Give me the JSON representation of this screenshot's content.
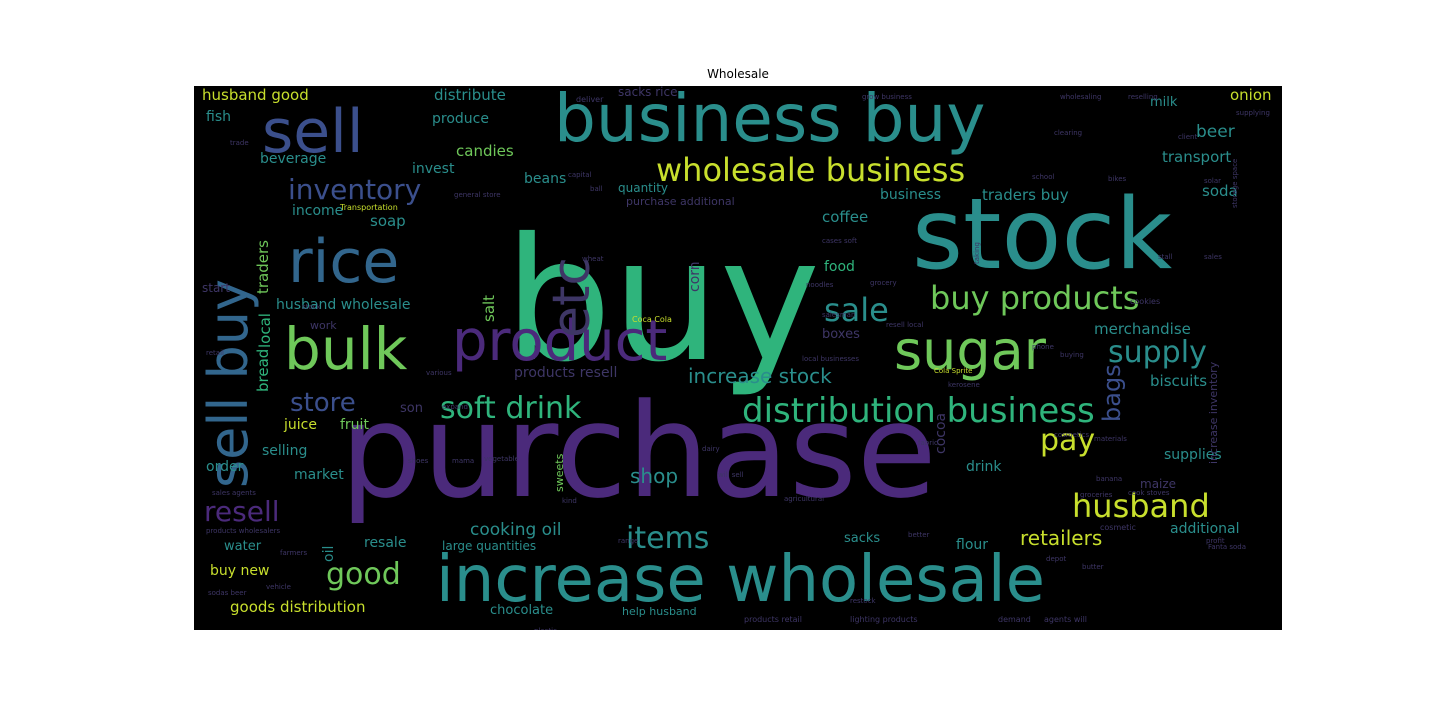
{
  "figure": {
    "title": "Wholesale"
  },
  "colors": {
    "purple": "#4b2a7b",
    "indigo": "#3b4f8c",
    "blue": "#32668d",
    "teal": "#2a8e8c",
    "green": "#2fb47c",
    "lime": "#6fc85a",
    "yellow": "#c8df2d",
    "dim": "#3e3666"
  },
  "words": [
    {
      "id": "buy",
      "text": "buy"
    },
    {
      "id": "purchase",
      "text": "purchase"
    },
    {
      "id": "stock",
      "text": "stock"
    },
    {
      "id": "business-buy",
      "text": "business buy"
    },
    {
      "id": "increase-wholesale",
      "text": "increase wholesale"
    },
    {
      "id": "product",
      "text": "product"
    },
    {
      "id": "sell",
      "text": "sell"
    },
    {
      "id": "rice",
      "text": "rice"
    },
    {
      "id": "bulk",
      "text": "bulk"
    },
    {
      "id": "sugar",
      "text": "sugar"
    },
    {
      "id": "sell-buy",
      "text": "sell buy"
    },
    {
      "id": "etc",
      "text": "etc"
    },
    {
      "id": "wholesale-business",
      "text": "wholesale business"
    },
    {
      "id": "distribution-business",
      "text": "distribution business"
    },
    {
      "id": "buy-products",
      "text": "buy products"
    },
    {
      "id": "soft-drink",
      "text": "soft drink"
    },
    {
      "id": "husband",
      "text": "husband"
    },
    {
      "id": "inventory",
      "text": "inventory"
    },
    {
      "id": "sale",
      "text": "sale"
    },
    {
      "id": "supply",
      "text": "supply"
    },
    {
      "id": "items",
      "text": "items"
    },
    {
      "id": "good",
      "text": "good"
    },
    {
      "id": "pay",
      "text": "pay"
    },
    {
      "id": "resell",
      "text": "resell"
    },
    {
      "id": "store",
      "text": "store"
    },
    {
      "id": "increase-stock",
      "text": "increase stock"
    },
    {
      "id": "bags",
      "text": "bags"
    },
    {
      "id": "shop",
      "text": "shop"
    },
    {
      "id": "retailers",
      "text": "retailers"
    },
    {
      "id": "cooking-oil",
      "text": "cooking oil"
    },
    {
      "id": "husband-good",
      "text": "husband good"
    },
    {
      "id": "distribute",
      "text": "distribute"
    },
    {
      "id": "sacks-rice",
      "text": "sacks rice"
    },
    {
      "id": "onion",
      "text": "onion"
    },
    {
      "id": "milk",
      "text": "milk"
    },
    {
      "id": "fish",
      "text": "fish"
    },
    {
      "id": "produce",
      "text": "produce"
    },
    {
      "id": "beer",
      "text": "beer"
    },
    {
      "id": "transport",
      "text": "transport"
    },
    {
      "id": "candies",
      "text": "candies"
    },
    {
      "id": "beverage",
      "text": "beverage"
    },
    {
      "id": "invest",
      "text": "invest"
    },
    {
      "id": "beans",
      "text": "beans"
    },
    {
      "id": "quantity",
      "text": "quantity"
    },
    {
      "id": "purchase-additional",
      "text": "purchase additional"
    },
    {
      "id": "soda",
      "text": "soda"
    },
    {
      "id": "income",
      "text": "income"
    },
    {
      "id": "traders-buy",
      "text": "traders buy"
    },
    {
      "id": "coffee",
      "text": "coffee"
    },
    {
      "id": "business",
      "text": "business"
    },
    {
      "id": "soap",
      "text": "soap"
    },
    {
      "id": "traders",
      "text": "traders"
    },
    {
      "id": "local",
      "text": "local"
    },
    {
      "id": "bread",
      "text": "bread"
    },
    {
      "id": "husband-wholesale",
      "text": "husband wholesale"
    },
    {
      "id": "salt",
      "text": "salt"
    },
    {
      "id": "corn",
      "text": "corn"
    },
    {
      "id": "food",
      "text": "food"
    },
    {
      "id": "boxes",
      "text": "boxes"
    },
    {
      "id": "merchandise",
      "text": "merchandise"
    },
    {
      "id": "products-resell",
      "text": "products resell"
    },
    {
      "id": "biscuits",
      "text": "biscuits"
    },
    {
      "id": "son",
      "text": "son"
    },
    {
      "id": "fruit",
      "text": "fruit"
    },
    {
      "id": "juice",
      "text": "juice"
    },
    {
      "id": "selling",
      "text": "selling"
    },
    {
      "id": "market",
      "text": "market"
    },
    {
      "id": "order",
      "text": "order"
    },
    {
      "id": "sweets",
      "text": "sweets"
    },
    {
      "id": "cocoa",
      "text": "cocoa"
    },
    {
      "id": "drink",
      "text": "drink"
    },
    {
      "id": "supplies",
      "text": "supplies"
    },
    {
      "id": "maize",
      "text": "maize"
    },
    {
      "id": "additional",
      "text": "additional"
    },
    {
      "id": "flour",
      "text": "flour"
    },
    {
      "id": "sacks",
      "text": "sacks"
    },
    {
      "id": "resale",
      "text": "resale"
    },
    {
      "id": "water",
      "text": "water"
    },
    {
      "id": "oil",
      "text": "oil"
    },
    {
      "id": "large-quantities",
      "text": "large quantities"
    },
    {
      "id": "buy-new",
      "text": "buy new"
    },
    {
      "id": "goods-distribution",
      "text": "goods distribution"
    },
    {
      "id": "chocolate",
      "text": "chocolate"
    },
    {
      "id": "help-husband",
      "text": "help husband"
    },
    {
      "id": "start",
      "text": "start"
    },
    {
      "id": "work",
      "text": "work"
    },
    {
      "id": "increase-inventory",
      "text": "increase inventory"
    },
    {
      "id": "coca-cola",
      "text": "Coca Cola"
    },
    {
      "id": "cola-sprite",
      "text": "Cola Sprite"
    },
    {
      "id": "noodles",
      "text": "noodles"
    },
    {
      "id": "grocery",
      "text": "grocery"
    },
    {
      "id": "local-businesses",
      "text": "local businesses"
    },
    {
      "id": "deliver",
      "text": "deliver"
    },
    {
      "id": "wholesaling",
      "text": "wholesaling"
    },
    {
      "id": "reselling",
      "text": "reselling"
    },
    {
      "id": "capital",
      "text": "capital"
    },
    {
      "id": "school",
      "text": "school"
    },
    {
      "id": "cookies",
      "text": "cookies"
    },
    {
      "id": "groceries",
      "text": "groceries"
    },
    {
      "id": "banana",
      "text": "banana"
    },
    {
      "id": "cosmetic",
      "text": "cosmetic"
    },
    {
      "id": "lighting-products",
      "text": "lighting products"
    },
    {
      "id": "products-retail",
      "text": "products retail"
    },
    {
      "id": "agents-will",
      "text": "agents will"
    },
    {
      "id": "demand",
      "text": "demand"
    },
    {
      "id": "vegetable",
      "text": "vegetable"
    },
    {
      "id": "dairy",
      "text": "dairy"
    },
    {
      "id": "retail",
      "text": "retail"
    },
    {
      "id": "various",
      "text": "various"
    },
    {
      "id": "expand",
      "text": "expand"
    },
    {
      "id": "transportation",
      "text": "Transportation"
    },
    {
      "id": "general-store",
      "text": "general store"
    },
    {
      "id": "sales-agents",
      "text": "sales agents"
    },
    {
      "id": "products-wholesalers",
      "text": "products wholesalers"
    },
    {
      "id": "grow-business",
      "text": "grow business"
    },
    {
      "id": "supplying",
      "text": "supplying"
    },
    {
      "id": "clearing",
      "text": "clearing"
    },
    {
      "id": "salesman",
      "text": "salesman"
    },
    {
      "id": "phone",
      "text": "phone"
    },
    {
      "id": "buying",
      "text": "buying"
    },
    {
      "id": "profit",
      "text": "profit"
    },
    {
      "id": "fanta-soda",
      "text": "Fanta soda"
    },
    {
      "id": "vehicle",
      "text": "vehicle"
    },
    {
      "id": "farmers",
      "text": "farmers"
    },
    {
      "id": "depot",
      "text": "depot"
    },
    {
      "id": "better",
      "text": "better"
    },
    {
      "id": "butter",
      "text": "butter"
    },
    {
      "id": "sodas-beer",
      "text": "sodas beer"
    },
    {
      "id": "plastic",
      "text": "plastic"
    },
    {
      "id": "restock",
      "text": "restock"
    },
    {
      "id": "cosmetics",
      "text": "cosmetics"
    },
    {
      "id": "materials",
      "text": "materials"
    },
    {
      "id": "bikes",
      "text": "bikes"
    },
    {
      "id": "storage-space",
      "text": "storage space"
    },
    {
      "id": "sales",
      "text": "sales"
    },
    {
      "id": "stall",
      "text": "stall"
    },
    {
      "id": "taking",
      "text": "taking"
    },
    {
      "id": "cases-soft",
      "text": "cases soft"
    },
    {
      "id": "ball",
      "text": "ball"
    },
    {
      "id": "wheat",
      "text": "wheat"
    },
    {
      "id": "will-sell",
      "text": "will sell"
    },
    {
      "id": "agricultural",
      "text": "agricultural"
    },
    {
      "id": "cook-stoves",
      "text": "cook stoves"
    },
    {
      "id": "trade",
      "text": "trade"
    },
    {
      "id": "client",
      "text": "client"
    },
    {
      "id": "shoes",
      "text": "shoes"
    },
    {
      "id": "fabric",
      "text": "fabric"
    },
    {
      "id": "mama",
      "text": "mama"
    },
    {
      "id": "kind",
      "text": "kind"
    },
    {
      "id": "resell-local",
      "text": "resell local"
    },
    {
      "id": "stock-2",
      "text": "stock"
    },
    {
      "id": "range",
      "text": "range"
    },
    {
      "id": "kerosene",
      "text": "kerosene"
    },
    {
      "id": "solar",
      "text": "solar"
    }
  ]
}
